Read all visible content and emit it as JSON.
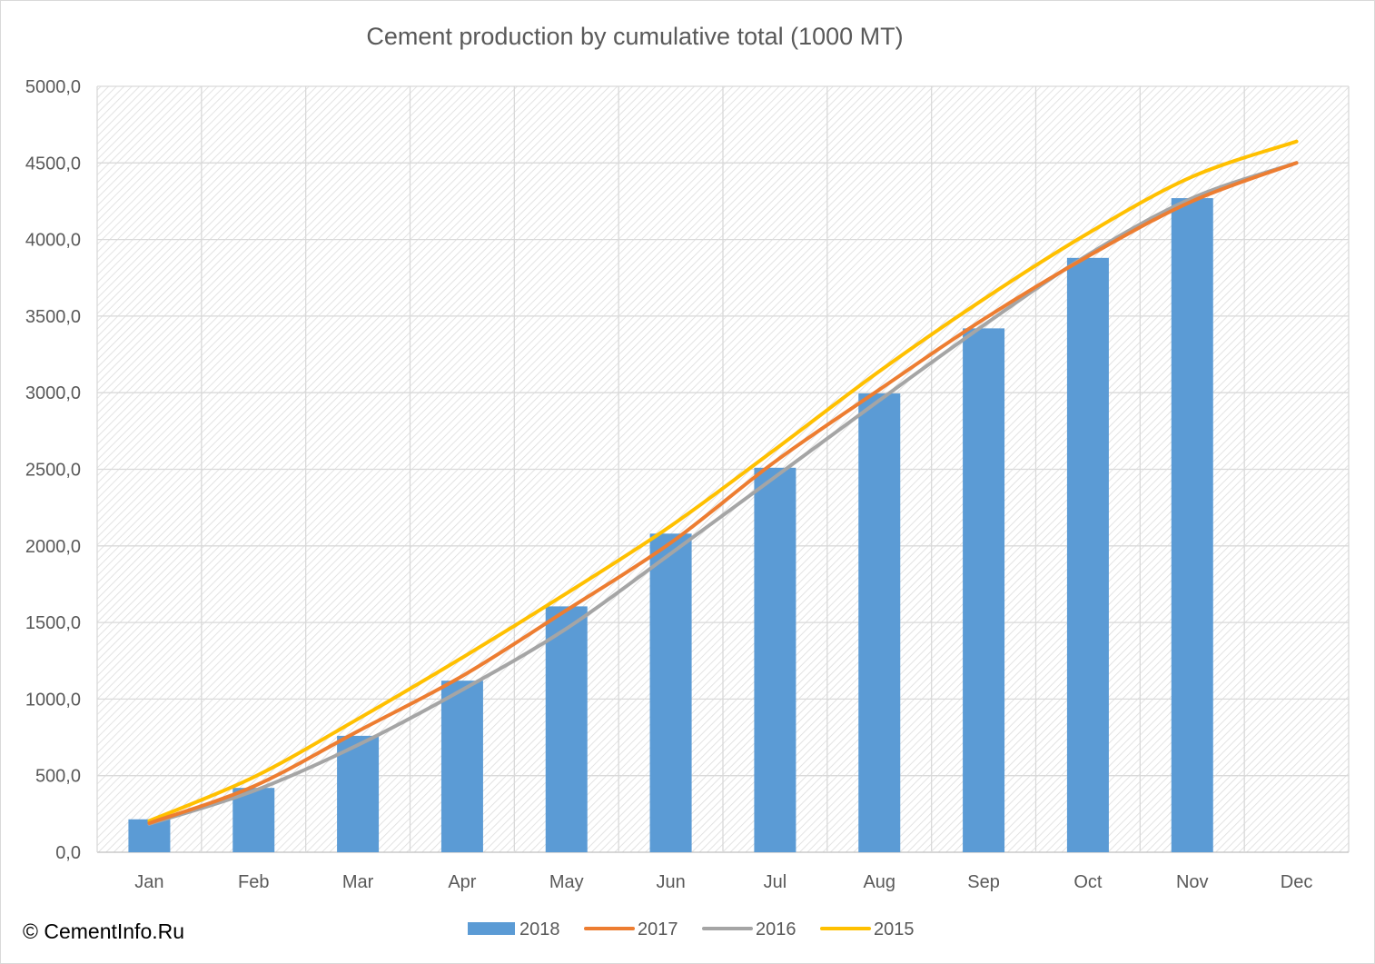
{
  "watermark": "© CementInfo.Ru",
  "colors": {
    "s2018": "#5b9bd5",
    "s2017": "#ed7d31",
    "s2016": "#a5a5a5",
    "s2015": "#ffc000",
    "grid": "#d9d9d9",
    "text": "#595959",
    "hatch": "#d9d9d9"
  },
  "chart_data": {
    "type": "bar",
    "title": "Cement production by cumulative total (1000 MT)",
    "xlabel": "",
    "ylabel": "",
    "ylim": [
      0,
      5000
    ],
    "ytick_step": 500,
    "ytick_labels": [
      "0,0",
      "500,0",
      "1000,0",
      "1500,0",
      "2000,0",
      "2500,0",
      "3000,0",
      "3500,0",
      "4000,0",
      "4500,0",
      "5000,0"
    ],
    "categories": [
      "Jan",
      "Feb",
      "Mar",
      "Apr",
      "May",
      "Jun",
      "Jul",
      "Aug",
      "Sep",
      "Oct",
      "Nov",
      "Dec"
    ],
    "grid": true,
    "legend_position": "bottom",
    "series": [
      {
        "name": "2018",
        "type": "bar",
        "color": "#5b9bd5",
        "values": [
          215,
          420,
          760,
          1120,
          1605,
          2080,
          2510,
          2995,
          3420,
          3880,
          4270,
          null
        ]
      },
      {
        "name": "2017",
        "type": "line",
        "color": "#ed7d31",
        "values": [
          190,
          430,
          790,
          1150,
          1580,
          2020,
          2550,
          3020,
          3480,
          3890,
          4250,
          4500
        ]
      },
      {
        "name": "2016",
        "type": "line",
        "color": "#a5a5a5",
        "values": [
          185,
          400,
          700,
          1060,
          1460,
          1950,
          2450,
          2950,
          3440,
          3900,
          4270,
          4500
        ]
      },
      {
        "name": "2015",
        "type": "line",
        "color": "#ffc000",
        "values": [
          205,
          490,
          870,
          1270,
          1690,
          2130,
          2630,
          3140,
          3610,
          4040,
          4410,
          4640
        ]
      }
    ]
  }
}
